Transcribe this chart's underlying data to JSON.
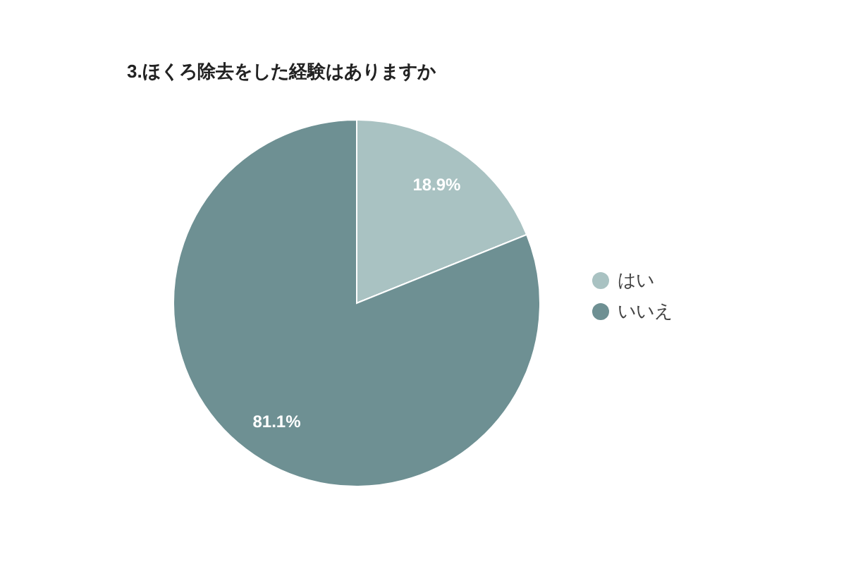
{
  "chart_data": {
    "type": "pie",
    "title": "3.ほくろ除去をした経験はありますか",
    "categories": [
      "はい",
      "いいえ"
    ],
    "values": [
      18.9,
      81.1
    ],
    "colors": [
      "#a9c2c2",
      "#6e9093"
    ],
    "value_labels": [
      "18.9%",
      "81.1%"
    ],
    "legend": "right"
  }
}
